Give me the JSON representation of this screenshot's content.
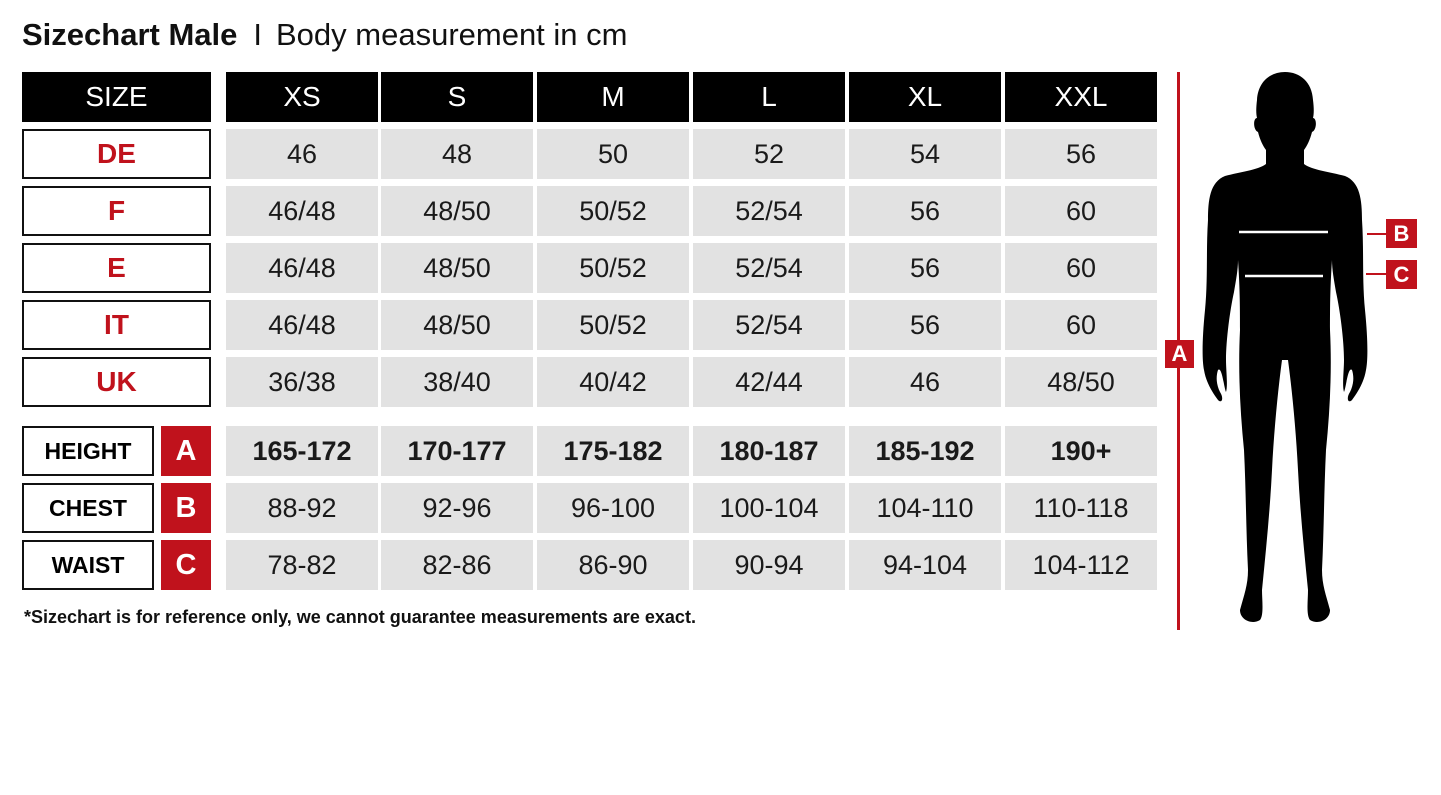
{
  "title": {
    "bold": "Sizechart Male",
    "separator": "I",
    "subtitle": "Body measurement in cm"
  },
  "header": {
    "label": "SIZE",
    "sizes": [
      "XS",
      "S",
      "M",
      "L",
      "XL",
      "XXL"
    ]
  },
  "conversion_rows": [
    {
      "label": "DE",
      "values": [
        "46",
        "48",
        "50",
        "52",
        "54",
        "56"
      ]
    },
    {
      "label": "F",
      "values": [
        "46/48",
        "48/50",
        "50/52",
        "52/54",
        "56",
        "60"
      ]
    },
    {
      "label": "E",
      "values": [
        "46/48",
        "48/50",
        "50/52",
        "52/54",
        "56",
        "60"
      ]
    },
    {
      "label": "IT",
      "values": [
        "46/48",
        "48/50",
        "50/52",
        "52/54",
        "56",
        "60"
      ]
    },
    {
      "label": "UK",
      "values": [
        "36/38",
        "38/40",
        "40/42",
        "42/44",
        "46",
        "48/50"
      ]
    }
  ],
  "measurement_rows": [
    {
      "label": "HEIGHT",
      "key": "A",
      "bold": true,
      "values": [
        "165-172",
        "170-177",
        "175-182",
        "180-187",
        "185-192",
        "190+"
      ]
    },
    {
      "label": "CHEST",
      "key": "B",
      "bold": false,
      "values": [
        "88-92",
        "92-96",
        "96-100",
        "100-104",
        "104-110",
        "110-118"
      ]
    },
    {
      "label": "WAIST",
      "key": "C",
      "bold": false,
      "values": [
        "78-82",
        "82-86",
        "86-90",
        "90-94",
        "94-104",
        "104-112"
      ]
    }
  ],
  "footnote": "*Sizechart is for reference only, we cannot guarantee measurements are exact.",
  "figure": {
    "height_marker": "A",
    "chest_marker": "B",
    "waist_marker": "C"
  },
  "colors": {
    "accent_red": "#c0121c",
    "header_black": "#000000",
    "cell_grey": "#e2e2e2"
  }
}
